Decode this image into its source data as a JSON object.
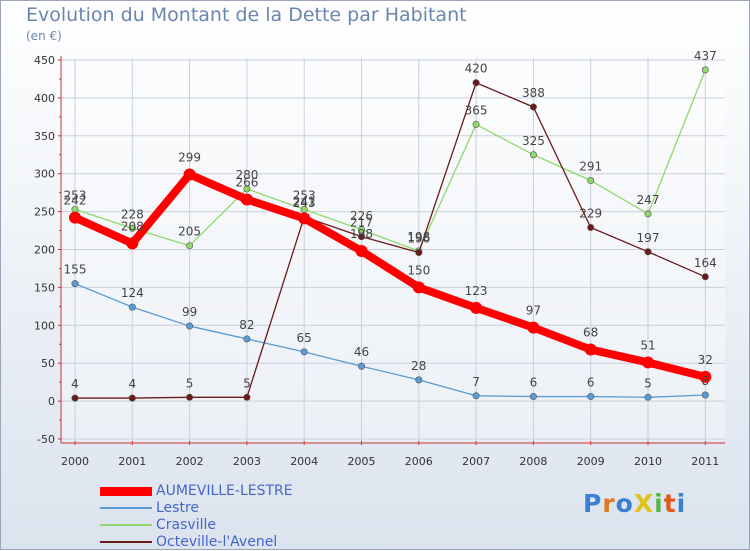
{
  "chart_data": {
    "type": "line",
    "title": "Evolution du Montant de la Dette par Habitant",
    "subtitle": "(en €)",
    "xlabel": "",
    "ylabel": "",
    "ylim": [
      -50,
      450
    ],
    "yticks": [
      "450",
      "400",
      "350",
      "300",
      "250",
      "200",
      "150",
      "100",
      "50",
      "0",
      "-50"
    ],
    "grid": true,
    "legend_position": "bottom-left",
    "categories": [
      "2000",
      "2001",
      "2002",
      "2003",
      "2004",
      "2005",
      "2006",
      "2007",
      "2008",
      "2009",
      "2010",
      "2011"
    ],
    "series": [
      {
        "name": "AUMEVILLE-LESTRE",
        "color": "#ff0000",
        "values": [
          242,
          208,
          299,
          266,
          241,
          198,
          150,
          123,
          97,
          68,
          51,
          32
        ]
      },
      {
        "name": "Lestre",
        "color": "#5b9bd5",
        "values": [
          155,
          124,
          99,
          82,
          65,
          46,
          28,
          7,
          6,
          6,
          5,
          8
        ]
      },
      {
        "name": "Crasville",
        "color": "#8fd96a",
        "values": [
          253,
          228,
          205,
          280,
          253,
          226,
          198,
          365,
          325,
          291,
          247,
          437
        ]
      },
      {
        "name": "Octeville-l'Avenel",
        "color": "#6b1a1a",
        "values": [
          4,
          4,
          5,
          5,
          243,
          217,
          196,
          420,
          388,
          229,
          197,
          164
        ]
      }
    ]
  },
  "logo": {
    "text": "ProXiti"
  }
}
